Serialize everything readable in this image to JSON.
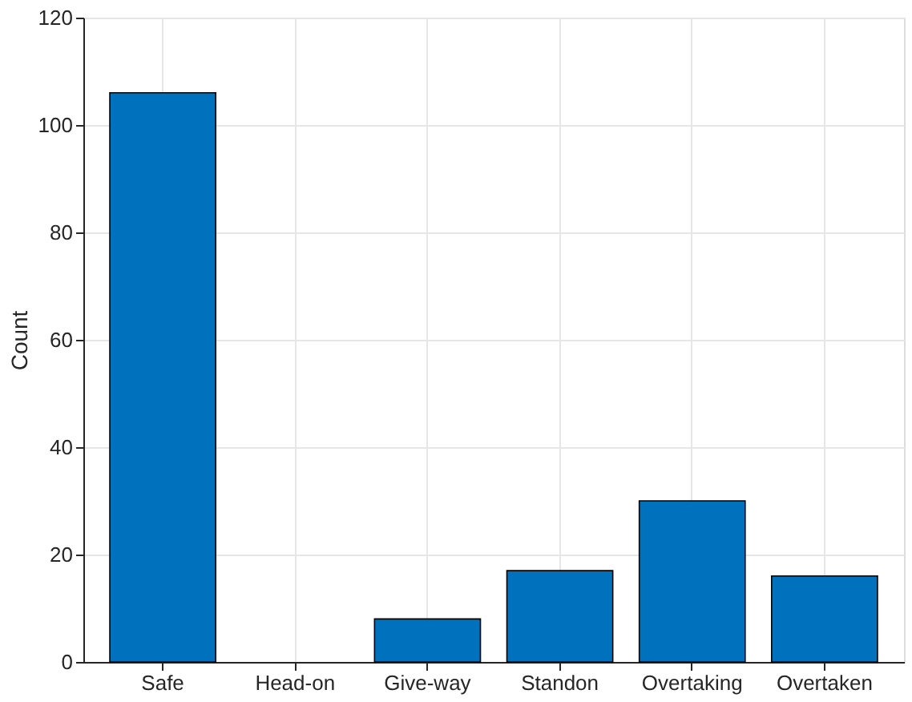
{
  "chart_data": {
    "type": "bar",
    "ylabel": "Count",
    "categories": [
      "Safe",
      "Head-on",
      "Give-way",
      "Standon",
      "Overtaking",
      "Overtaken"
    ],
    "values": [
      106,
      0,
      8,
      17,
      30,
      16
    ],
    "color": "#0072bd",
    "ylim": [
      0,
      120
    ],
    "yticks": [
      0,
      20,
      40,
      60,
      80,
      100,
      120
    ],
    "grid": true
  }
}
